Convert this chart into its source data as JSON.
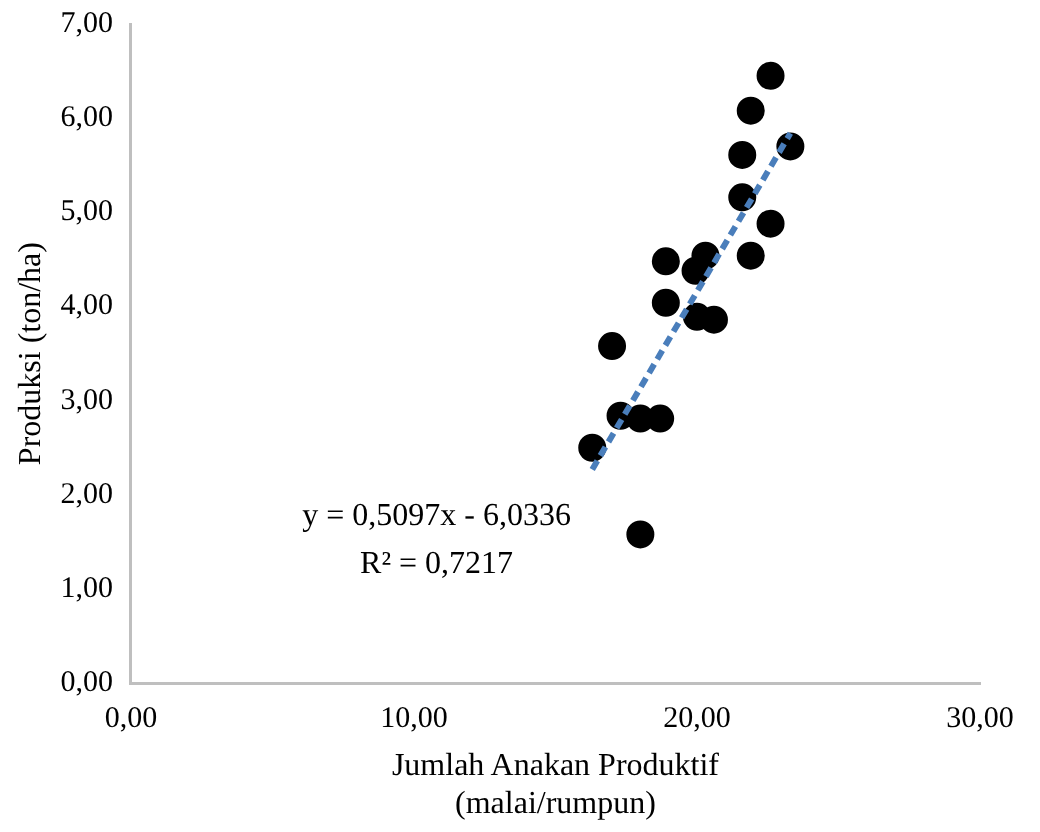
{
  "chart_data": {
    "type": "scatter",
    "xlabel": "Jumlah Anakan Produktif (malai/rumpun)",
    "ylabel": "Produksi (ton/ha)",
    "xlim": [
      0,
      30
    ],
    "xticks": [
      {
        "value": 0,
        "label": "0,00"
      },
      {
        "value": 10,
        "label": "10,00"
      },
      {
        "value": 20,
        "label": "20,00"
      },
      {
        "value": 30,
        "label": "30,00"
      }
    ],
    "ylim": [
      0,
      7
    ],
    "yticks": [
      {
        "value": 0,
        "label": "0,00"
      },
      {
        "value": 1,
        "label": "1,00"
      },
      {
        "value": 2,
        "label": "2,00"
      },
      {
        "value": 3,
        "label": "3,00"
      },
      {
        "value": 4,
        "label": "4,00"
      },
      {
        "value": 5,
        "label": "5,00"
      },
      {
        "value": 6,
        "label": "6,00"
      },
      {
        "value": 7,
        "label": "7,00"
      }
    ],
    "grid": false,
    "legend": false,
    "marker": "circle",
    "series": [
      {
        "type": "scatter",
        "color": "#000000",
        "x": [
          16.3,
          17.0,
          17.3,
          18.0,
          18.7,
          18.0,
          18.9,
          18.9,
          19.95,
          20.3,
          20.0,
          20.6,
          21.6,
          21.9,
          22.6,
          21.6,
          23.3,
          22.6,
          21.9
        ],
        "values": [
          2.5,
          3.58,
          2.84,
          2.81,
          2.81,
          1.58,
          4.48,
          4.04,
          4.38,
          4.54,
          3.89,
          3.86,
          5.61,
          6.08,
          6.45,
          5.16,
          5.7,
          4.88,
          4.54
        ]
      },
      {
        "type": "line",
        "color": "#4a7ebb",
        "line_style": "dashed",
        "marker": "none",
        "x": [
          16.3,
          23.3
        ],
        "values": [
          2.27,
          5.84
        ]
      }
    ],
    "annotations": [
      "y = 0,5097x - 6,0336",
      "R² = 0,7217"
    ]
  }
}
